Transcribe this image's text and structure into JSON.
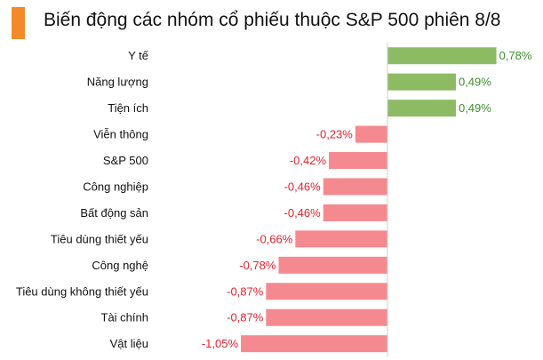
{
  "title": "Biến động các nhóm cổ phiếu thuộc S&P 500 phiên 8/8",
  "chart_data": {
    "type": "bar",
    "orientation": "horizontal",
    "categories": [
      "Y tế",
      "Năng lượng",
      "Tiện ích",
      "Viễn thông",
      "S&P 500",
      "Công nghiệp",
      "Bất động sản",
      "Tiêu dùng thiết yếu",
      "Công nghệ",
      "Tiêu dùng không thiết yếu",
      "Tài chính",
      "Vật liệu"
    ],
    "values": [
      0.78,
      0.49,
      0.49,
      -0.23,
      -0.42,
      -0.46,
      -0.46,
      -0.66,
      -0.78,
      -0.87,
      -0.87,
      -1.05
    ],
    "value_labels": [
      "0,78%",
      "0,49%",
      "0,49%",
      "-0,23%",
      "-0,42%",
      "-0,46%",
      "-0,46%",
      "-0,66%",
      "-0,78%",
      "-0,87%",
      "-0,87%",
      "-1,05%"
    ],
    "colors": {
      "positive_bar": "#8dbb63",
      "positive_text": "#3f8f2f",
      "negative_bar": "#f48a8f",
      "negative_text": "#e8212b",
      "accent": "#f28a2a"
    },
    "xlim": [
      -1.05,
      0.78
    ],
    "grid": false,
    "legend": "none"
  }
}
